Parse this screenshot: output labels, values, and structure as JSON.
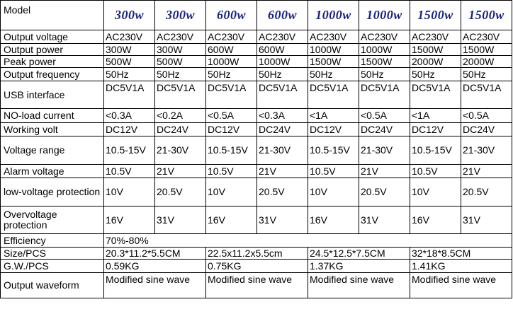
{
  "table": {
    "model_label": "Model",
    "models": [
      "300w",
      "300w",
      "600w",
      "600w",
      "1000w",
      "1000w",
      "1500w",
      "1500w"
    ],
    "rows": {
      "output_voltage": {
        "label": "Output voltage",
        "values": [
          "AC230V",
          "AC230V",
          "AC230V",
          "AC230V",
          "AC230V",
          "AC230V",
          "AC230V",
          "AC230V"
        ]
      },
      "output_power": {
        "label": "Output power",
        "values": [
          "300W",
          "300W",
          "600W",
          "600W",
          "1000W",
          "1000W",
          "1500W",
          "1500W"
        ]
      },
      "peak_power": {
        "label": "Peak power",
        "values": [
          "500W",
          "500W",
          "1000W",
          "1000W",
          "1500W",
          "1500W",
          "2000W",
          "2000W"
        ]
      },
      "output_frequency": {
        "label": "Output frequency",
        "values": [
          "50Hz",
          "50Hz",
          "50Hz",
          "50Hz",
          "50Hz",
          "50Hz",
          "50Hz",
          "50Hz"
        ]
      },
      "usb_interface": {
        "label": "USB interface",
        "values": [
          "DC5V1A",
          "DC5V1A",
          "DC5V1A",
          "DC5V1A",
          "DC5V1A",
          "DC5V1A",
          "DC5V1A",
          "DC5V1A"
        ]
      },
      "no_load_current": {
        "label": "NO-load current",
        "values": [
          "<0.3A",
          "<0.2A",
          "<0.5A",
          "<0.3A",
          "<1A",
          "<0.5A",
          "<1A",
          "<0.5A"
        ]
      },
      "working_volt": {
        "label": "Working volt",
        "values": [
          "DC12V",
          "DC24V",
          "DC12V",
          "DC24V",
          "DC12V",
          "DC24V",
          "DC12V",
          "DC24V"
        ]
      },
      "voltage_range": {
        "label": "Voltage range",
        "values": [
          "10.5-15V",
          "21-30V",
          "10.5-15V",
          "21-30V",
          "10.5-15V",
          "21-30V",
          "10.5-15V",
          "21-30V"
        ]
      },
      "alarm_voltage": {
        "label": "Alarm voltage",
        "values": [
          "10.5V",
          "21V",
          "10.5V",
          "21V",
          "10.5V",
          "21V",
          "10.5V",
          "21V"
        ]
      },
      "low_voltage_protection": {
        "label": "low-voltage protection",
        "values": [
          "10V",
          "20.5V",
          "10V",
          "20.5V",
          "10V",
          "20.5V",
          "10V",
          "20.5V"
        ]
      },
      "overvoltage_protection": {
        "label": "Overvoltage protection",
        "values": [
          "16V",
          "31V",
          "16V",
          "31V",
          "16V",
          "31V",
          "16V",
          "31V"
        ]
      },
      "efficiency": {
        "label": "Efficiency",
        "value": "70%-80%"
      },
      "size": {
        "label": "Size/PCS",
        "values": [
          "20.3*11.2*5.5CM",
          "22.5x11.2x5.5cm",
          "24.5*12.5*7.5CM",
          "32*18*8.5CM"
        ]
      },
      "gw": {
        "label": "G.W./PCS",
        "values": [
          "0.59KG",
          "0.75KG",
          "1.37KG",
          "1.41KG"
        ]
      },
      "output_waveform": {
        "label": "Output waveform",
        "values": [
          "Modified sine wave",
          "Modified sine wave",
          "Modified sine wave",
          "Modified sine wave"
        ]
      }
    }
  }
}
